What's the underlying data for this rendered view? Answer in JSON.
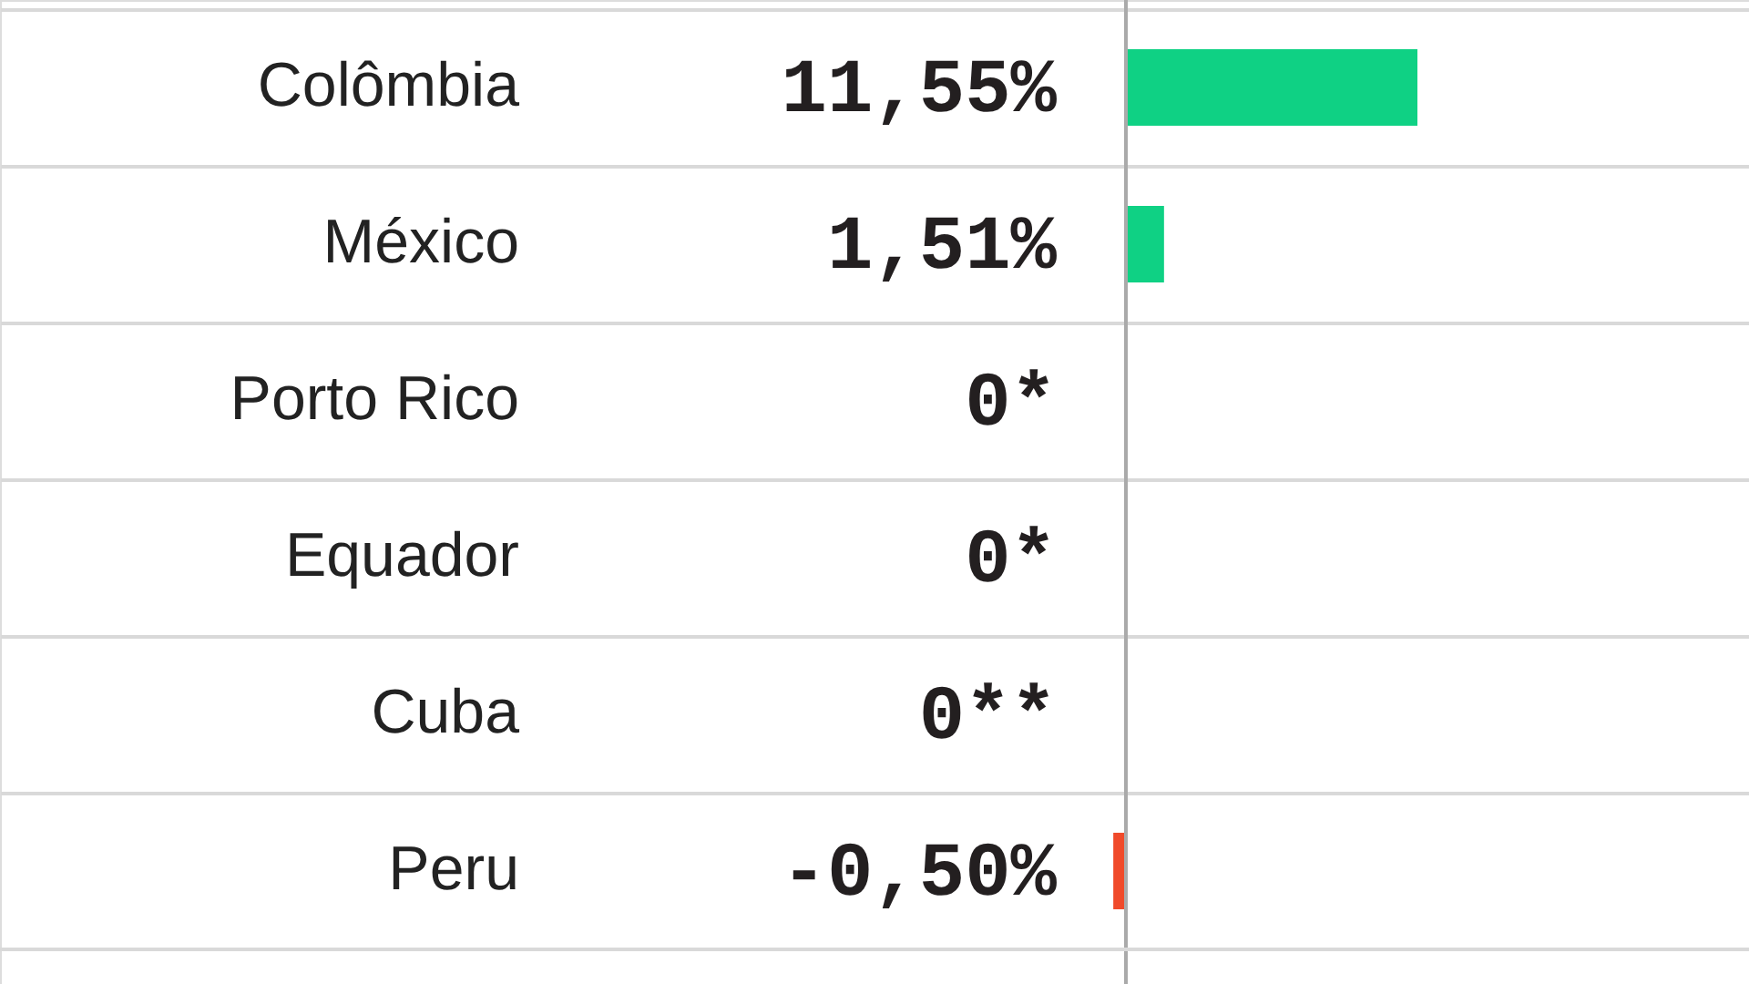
{
  "chart_data": {
    "type": "bar",
    "orientation": "horizontal",
    "grid": "y",
    "categories": [
      "Colômbia",
      "México",
      "Porto Rico",
      "Equador",
      "Cuba",
      "Peru"
    ],
    "values": [
      11.55,
      1.51,
      0,
      0,
      0,
      -0.5
    ],
    "colors": [
      "#0fd184",
      "#0fd184",
      "#0fd184",
      "#0fd184",
      "#0fd184",
      "#f04a2a"
    ],
    "value_labels": [
      "11,55%",
      "1,51%",
      "0*",
      "0*",
      "0**",
      "-0,50%"
    ]
  }
}
